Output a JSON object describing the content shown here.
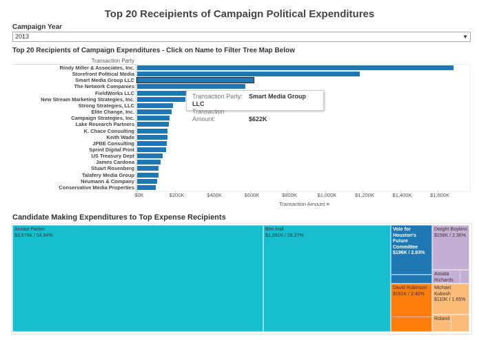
{
  "title": "Top 20 Receipients of Campaign Political Expenditures",
  "filter": {
    "label": "Campaign Year",
    "value": "2013"
  },
  "bar_chart_title": "Top 20 Recipients of Campaign Expenditures - Click on Name to Filter Tree Map Below",
  "chart_data": {
    "type": "bar",
    "orientation": "horizontal",
    "ylabel": "Transaction Party",
    "xlabel": "Transaction Amount",
    "xlim": [
      0,
      1750
    ],
    "color": "#1f77b4",
    "xticks": [
      "$0K",
      "$200K",
      "$400K",
      "$600K",
      "$800K",
      "$1,000K",
      "$1,200K",
      "$1,400K",
      "$1,600K"
    ],
    "categories": [
      "Rindy Miller & Associates, Inc.",
      "Storefront Political Media",
      "Smart Media Group LLC",
      "The Network Companies",
      "FieldWorks LLC",
      "New Stream Marketing Strategies, Inc.",
      "Strong Strategies, LLC",
      "Elite Change, Inc.",
      "Campaign Strategies, Inc.",
      "Lake Research Partners",
      "K. Chace Consulting",
      "Keith Wade",
      "JPBE Consulting",
      "Sprint Digital Print",
      "US Treasury Dept",
      "James Cardona",
      "Stuart Rosenberg",
      "Talafery Media Group",
      "Neumann & Company",
      "Conservative Media Properties"
    ],
    "values": [
      1684,
      1185,
      622,
      576,
      260,
      258,
      191,
      185,
      171,
      170,
      163,
      160,
      158,
      155,
      136,
      124,
      112,
      112,
      105,
      100
    ],
    "selected": "Smart Media Group LLC"
  },
  "tooltip": {
    "party_label": "Transaction Party:",
    "party_value": "Smart Media Group LLC",
    "amount_label": "Transaction Amount:",
    "amount_value": "$622K"
  },
  "treemap": {
    "title": "Candidate Making Expenditures to Top Expense Recipients",
    "cells": [
      {
        "name": "Annise Parker",
        "value": "$3,675K / 54.94%",
        "color": "#17becf"
      },
      {
        "name": "Ben Hall",
        "value": "$1,891K / 28.27%",
        "color": "#17becf"
      },
      {
        "name": "Vote for Houston's Future Committee",
        "value": "$196K / 2.93%",
        "color": "#1f77b4"
      },
      {
        "name": "Dwight Boykins",
        "value": "$158K / 2.36%",
        "color": "#c5b0d5"
      },
      {
        "name": "Assata Richards",
        "value": "",
        "color": "#c5b0d5"
      },
      {
        "name": "David Robinson",
        "value": "$161K / 2.40%",
        "color": "#ff7f0e"
      },
      {
        "name": "Michael Kubosh",
        "value": "$110K / 1.65%",
        "color": "#ffbb78"
      },
      {
        "name": "Roland Chavez",
        "value": "",
        "color": "#ffbb78"
      }
    ]
  }
}
